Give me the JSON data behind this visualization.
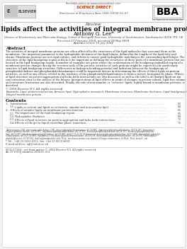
{
  "bg_color": "#f0f0f0",
  "page_bg": "#ffffff",
  "title_review": "Review",
  "title_main": "How lipids affect the activities of integral membrane proteins",
  "author": "Anthony G. Lee*",
  "affiliation": "Division of Biochemistry and Molecular Biology, School of Biological Sciences, University of Southampton, Southampton SO16 7PX, UK",
  "received": "Received 27 February 2004; accepted 28 May 2004",
  "available": "Available online 16 July 2004",
  "journal": "Biochimica et Biophysica Acta 1666 (2004) 62–87",
  "available_online": "Available online at www.sciencedirect.com",
  "abstract_title": "Abstract",
  "abstract_lines": [
    "The activities of integral membrane proteins are often affected by the structures of the lipid molecules that surround them in the",
    "membrane. One important parameter is the hydrophobic thickness of the lipid bilayer, defined by the lengths of the lipid fatty acyl",
    "chains. Membrane proteins are not rigid entities, and deform to ensure good hydrophobic matching to the surrounding lipid bilayer. The",
    "structure of the lipid headgroup region is likely to be important in defining the structures of those parts of a membrane protein that are",
    "located in the lipid headgroup region. A number of examples are given where the conformation of the headgroup-embedded region of a",
    "membrane protein changes during the reaction cycle of the protein; activities of such proteins might be expected to be particularly",
    "sensitive to lipid headgroup structure. Differences in hydrogen bonding potential and hydration between the headgroups of",
    "phosphatidylcholines and phosphatidylethanolamines could be important factors in determining the effects of these lipids on protein",
    "activities, as well as any effects related to the tendency of the phosphatidylethanolamines to form a curved, hexagonal H₂ phase. Effects",
    "of lipid structure on protein aggregation and helix–helix interactions are also discussed, as well as the effects of charged lipids on ion",
    "concentrations close to the surface of the bilayer. Interpretations of lipid effects in terms of changes in protein volume, lipid free volume,",
    "and curvature frustration are also described. Finally, the role of non-annular, or ‘co-factor’ lipids, tightly bound to membrane proteins, is",
    "described."
  ],
  "copyright": "© 2004 Elsevier B.V. All rights reserved.",
  "keywords_lines": [
    "Keywords: Lipid–protein interaction; Annular lipid; Hydrophobic mismatch; Membrane structure; Membrane thickness; Lipid headgroup; Non-annular lipid;",
    "Integral membrane protein"
  ],
  "contents_title": "Contents",
  "contents_items": [
    {
      "num": "1.",
      "indent": false,
      "text": "Introduction . . . . . . . . . . . . . . . . . . . . . . . . . . . . . . . . . . . . . . . . . . . . . . . . . . . . . . . . . . . . . . . . . . . . . . . . . . . . . . . . . . . . . .",
      "page": "63"
    },
    {
      "num": "1.1.",
      "indent": true,
      "text": "Lipids as solvent and lipids as co-factors: annular and non-annular lipid . . . . . . . . . . . . . . . . . . . . . . . . . . . . . . . . . . . . .",
      "page": "64"
    },
    {
      "num": "2.",
      "indent": false,
      "text": "Effects of annular lipids on membrane protein function . . . . . . . . . . . . . . . . . . . . . . . . . . . . . . . . . . . . . . . . . . . . . . . . . . . .",
      "page": "65"
    },
    {
      "num": "2.1.",
      "indent": true,
      "text": "The importance of the lipid headgroup region . . . . . . . . . . . . . . . . . . . . . . . . . . . . . . . . . . . . . . . . . . . . . . . . . . . . . . . . . .",
      "page": "65"
    },
    {
      "num": "2.2.",
      "indent": true,
      "text": "Hydrophobic thickness . . . . . . . . . . . . . . . . . . . . . . . . . . . . . . . . . . . . . . . . . . . . . . . . . . . . . . . . . . . . . . . . . . . . . . . . . . . . .",
      "page": "69"
    },
    {
      "num": "2.3.",
      "indent": true,
      "text": "Effects of lipid structure on protein aggregation and helix–helix interactions . . . . . . . . . . . . . . . . . . . . . . . . . . . . . . . . . .",
      "page": "72"
    },
    {
      "num": "2.4.",
      "indent": true,
      "text": "Effects of the gel to liquid crystalline phase transition . . . . . . . . . . . . . . . . . . . . . . . . . . . . . . . . . . . . . . . . . . . . . . . . . . .",
      "page": "72"
    }
  ],
  "abbr_lines": [
    "Abbreviations: GPA, glycerophosphocholine; GPE, glycerophosphoethanolamine; diC14:0PC, dimyristoylphosphatidylcholine; diC14:1PC, dimyristoyl-",
    "toylphosphatidylcholine; diC16:0PC, dipalmitoylphosphatidylcholine; diC18:1PC, dioleoylphosphatidylcholine; diC22:1PC, dierucoylphosphatidylcho-",
    "line; diC22:0PC, dibehenoylphosphatidylcholine; diC14:0PE, diC4,7,10,13,16,19-hexadecatetraenoylphosphatidylcholine; diC13:0PE, diheptylphosphatidyl-",
    "ethanolamine; diC14:0,14:1PE; 1-palmitoyl-2-oleoylphosphatidylethanolamine; diC19:1PE, dioleoylphosphatidylethanolamine; diC19:1PG, dioleoylphos-",
    "phatidylglycerol; diC18:1PA, dioleoylphosphatidic acid; MscL, mechanosensitive ion channel of large conductance; EcMscL, MscL from E. coli"
  ],
  "footnote_tel": "* Tel.: +44 23 8059 4331; fax: +44 23 8059 4459.",
  "footnote_email": "E-mail address: agl@soton.ac.uk",
  "issn": "0005-2736/$ - see front matter © 2004 Elsevier B.V. All rights reserved.",
  "doi": "doi:10.1016/j.bbamem.2004.05.012",
  "url_bba": "http://www.elsevier.com/locate/bba"
}
